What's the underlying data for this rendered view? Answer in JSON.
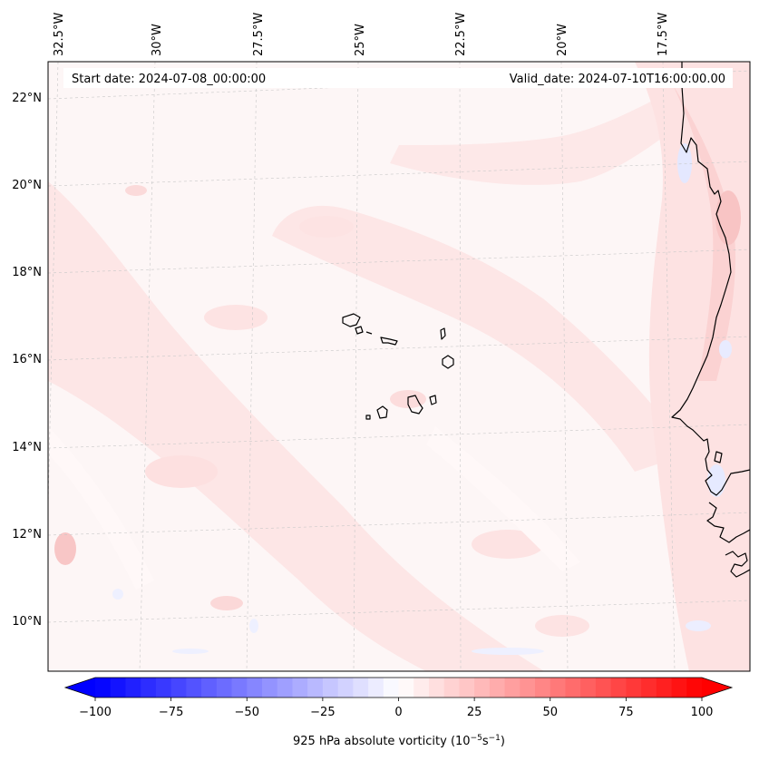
{
  "header": {
    "start_date": "Start date: 2024-07-08_00:00:00",
    "valid_date": "Valid_date: 2024-07-10T16:00:00.00"
  },
  "map": {
    "lon_labels": [
      "32.5°W",
      "30°W",
      "27.5°W",
      "25°W",
      "22.5°W",
      "20°W",
      "17.5°W"
    ],
    "lat_labels": [
      "22°N",
      "20°N",
      "18°N",
      "16°N",
      "14°N",
      "12°N",
      "10°N"
    ]
  },
  "colorbar": {
    "title": "925 hPa absolute vorticity (10",
    "title_exp": "−5",
    "title_mid": "s",
    "title_exp2": "−1",
    "title_end": ")",
    "ticks": [
      "−100",
      "−75",
      "−50",
      "−25",
      "0",
      "25",
      "50",
      "75",
      "100"
    ],
    "vmin": -100,
    "vmax": 100,
    "levels": 40,
    "colormap": "bwr",
    "color_low": "#0000ff",
    "color_mid": "#ffffff",
    "color_high": "#ff0000"
  }
}
